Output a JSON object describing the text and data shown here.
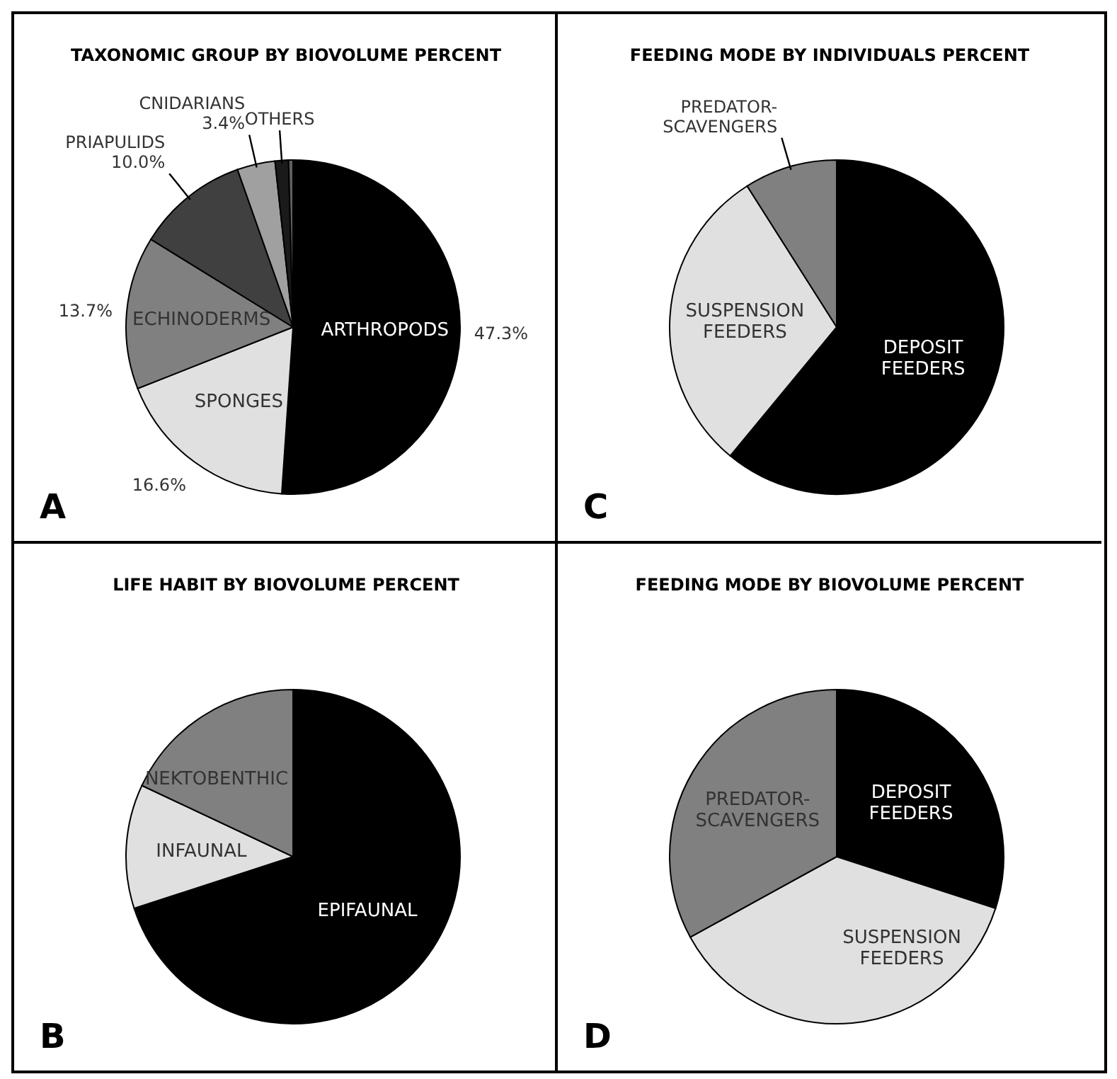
{
  "chart_data": [
    {
      "type": "pie",
      "title": "TAXONOMIC GROUP BY BIOVOLUME PERCENT",
      "categories": [
        "ARTHROPODS",
        "SPONGES",
        "ECHINODERMS",
        "PRIAPULIDS",
        "CNIDARIANS",
        "OTHERS",
        null
      ],
      "values": [
        47.3,
        16.6,
        13.7,
        10.0,
        3.4,
        1.2,
        0.4
      ],
      "value_labels": [
        "47.3%",
        "16.6%",
        "13.7%",
        "10.0%",
        "3.4%",
        null,
        null
      ],
      "colors": [
        "#000000",
        "#e0e0e0",
        "#808080",
        "#404040",
        "#a0a0a0",
        "#1a1a1a",
        "#606060"
      ],
      "annotations": [
        "A"
      ]
    },
    {
      "type": "pie",
      "title": "FEEDING MODE BY INDIVIDUALS PERCENT",
      "categories": [
        "DEPOSIT FEEDERS",
        "SUSPENSION FEEDERS",
        "PREDATOR-SCAVENGERS"
      ],
      "values": [
        61,
        30,
        9
      ],
      "colors": [
        "#000000",
        "#e0e0e0",
        "#808080"
      ],
      "annotations": [
        "C"
      ]
    },
    {
      "type": "pie",
      "title": "LIFE HABIT BY BIOVOLUME PERCENT",
      "categories": [
        "EPIFAUNAL",
        "INFAUNAL",
        "NEKTOBENTHIC"
      ],
      "values": [
        70,
        12,
        18
      ],
      "colors": [
        "#000000",
        "#e0e0e0",
        "#808080"
      ],
      "annotations": [
        "B"
      ]
    },
    {
      "type": "pie",
      "title": "FEEDING MODE BY BIOVOLUME PERCENT",
      "categories": [
        "DEPOSIT FEEDERS",
        "SUSPENSION FEEDERS",
        "PREDATOR-SCAVENGERS"
      ],
      "values": [
        30,
        37,
        33
      ],
      "colors": [
        "#000000",
        "#e0e0e0",
        "#808080"
      ],
      "annotations": [
        "D"
      ]
    }
  ]
}
